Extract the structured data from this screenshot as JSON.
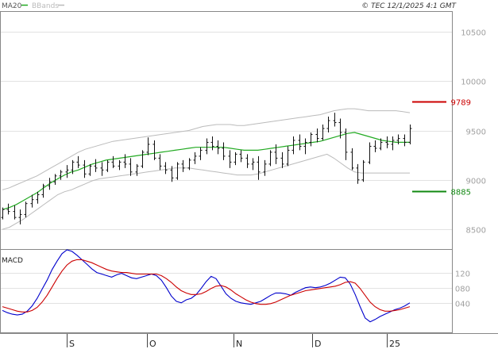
{
  "header": {
    "legend": [
      {
        "label": "MA20",
        "color": "#22aa22"
      },
      {
        "label": "BBands",
        "color": "#bbbbbb"
      }
    ],
    "copyright": "© TEC 12/1/2025 4:1 GMT"
  },
  "chart_data": [
    {
      "type": "line",
      "panel": "price",
      "y_ticks": [
        "10500",
        "10000",
        "9500",
        "9000",
        "8500"
      ],
      "ylim": [
        8300,
        10700
      ],
      "x_ticks": [
        "S",
        "O",
        "N",
        "D",
        "25"
      ],
      "grid": true,
      "series": [
        {
          "name": "MA20",
          "color": "#22aa22",
          "values": [
            8700,
            8720,
            8750,
            8790,
            8830,
            8870,
            8920,
            8970,
            9010,
            9050,
            9080,
            9100,
            9130,
            9160,
            9180,
            9200,
            9210,
            9220,
            9230,
            9240,
            9250,
            9260,
            9270,
            9280,
            9290,
            9300,
            9310,
            9320,
            9330,
            9330,
            9330,
            9330,
            9330,
            9320,
            9310,
            9300,
            9300,
            9300,
            9310,
            9320,
            9330,
            9340,
            9350,
            9360,
            9370,
            9380,
            9390,
            9410,
            9430,
            9450,
            9470,
            9480,
            9460,
            9440,
            9420,
            9400,
            9390,
            9380,
            9380,
            9380
          ]
        },
        {
          "name": "BBands",
          "color": "#bbbbbb",
          "values": [
            8500,
            8520,
            8560,
            8600,
            8650,
            8700,
            8750,
            8800,
            8850,
            8880,
            8900,
            8930,
            8960,
            8990,
            9010,
            9020,
            9030,
            9040,
            9050,
            9060,
            9070,
            9080,
            9090,
            9100,
            9110,
            9120,
            9120,
            9120,
            9110,
            9100,
            9090,
            9080,
            9070,
            9060,
            9050,
            9050,
            9050,
            9060,
            9080,
            9100,
            9120,
            9140,
            9160,
            9180,
            9200,
            9220,
            9240,
            9260,
            9220,
            9170,
            9120,
            9080,
            9070,
            9070,
            9070,
            9070,
            9070,
            9070,
            9070,
            9070
          ]
        },
        {
          "values": [
            8900,
            8920,
            8950,
            8980,
            9010,
            9040,
            9080,
            9120,
            9160,
            9200,
            9240,
            9280,
            9310,
            9330,
            9350,
            9370,
            9390,
            9400,
            9410,
            9420,
            9430,
            9440,
            9450,
            9460,
            9470,
            9480,
            9490,
            9500,
            9520,
            9540,
            9550,
            9560,
            9560,
            9560,
            9550,
            9550,
            9560,
            9570,
            9580,
            9590,
            9600,
            9610,
            9620,
            9630,
            9640,
            9650,
            9660,
            9680,
            9700,
            9710,
            9720,
            9720,
            9710,
            9700,
            9700,
            9700,
            9700,
            9700,
            9690,
            9680
          ]
        }
      ],
      "candles": [
        [
          8620,
          8720,
          8600,
          8700
        ],
        [
          8700,
          8760,
          8650,
          8680
        ],
        [
          8680,
          8740,
          8600,
          8620
        ],
        [
          8620,
          8700,
          8550,
          8650
        ],
        [
          8650,
          8780,
          8620,
          8760
        ],
        [
          8760,
          8850,
          8720,
          8800
        ],
        [
          8800,
          8880,
          8760,
          8850
        ],
        [
          8850,
          8960,
          8820,
          8940
        ],
        [
          8940,
          9020,
          8900,
          8980
        ],
        [
          8980,
          9060,
          8950,
          9040
        ],
        [
          9040,
          9100,
          9000,
          9080
        ],
        [
          9080,
          9150,
          9020,
          9100
        ],
        [
          9100,
          9200,
          9060,
          9180
        ],
        [
          9180,
          9240,
          9120,
          9150
        ],
        [
          9150,
          9200,
          9020,
          9060
        ],
        [
          9060,
          9160,
          9040,
          9140
        ],
        [
          9140,
          9210,
          9080,
          9120
        ],
        [
          9120,
          9180,
          9040,
          9100
        ],
        [
          9100,
          9200,
          9080,
          9180
        ],
        [
          9180,
          9240,
          9120,
          9140
        ],
        [
          9140,
          9200,
          9100,
          9180
        ],
        [
          9180,
          9260,
          9120,
          9160
        ],
        [
          9160,
          9220,
          9040,
          9080
        ],
        [
          9080,
          9160,
          9040,
          9140
        ],
        [
          9140,
          9300,
          9120,
          9280
        ],
        [
          9280,
          9430,
          9250,
          9360
        ],
        [
          9360,
          9400,
          9200,
          9220
        ],
        [
          9220,
          9260,
          9100,
          9140
        ],
        [
          9140,
          9180,
          9060,
          9100
        ],
        [
          9100,
          9140,
          8980,
          9020
        ],
        [
          9020,
          9180,
          9000,
          9160
        ],
        [
          9160,
          9200,
          9080,
          9120
        ],
        [
          9120,
          9220,
          9100,
          9200
        ],
        [
          9200,
          9280,
          9160,
          9240
        ],
        [
          9240,
          9330,
          9200,
          9300
        ],
        [
          9300,
          9420,
          9260,
          9380
        ],
        [
          9380,
          9440,
          9300,
          9340
        ],
        [
          9340,
          9400,
          9260,
          9320
        ],
        [
          9320,
          9380,
          9200,
          9240
        ],
        [
          9240,
          9300,
          9120,
          9180
        ],
        [
          9180,
          9280,
          9150,
          9260
        ],
        [
          9260,
          9300,
          9180,
          9220
        ],
        [
          9220,
          9260,
          9120,
          9160
        ],
        [
          9160,
          9220,
          9100,
          9180
        ],
        [
          9180,
          9240,
          9000,
          9080
        ],
        [
          9080,
          9200,
          9040,
          9160
        ],
        [
          9160,
          9300,
          9140,
          9280
        ],
        [
          9280,
          9360,
          9160,
          9220
        ],
        [
          9220,
          9280,
          9120,
          9160
        ],
        [
          9160,
          9340,
          9140,
          9300
        ],
        [
          9300,
          9440,
          9260,
          9400
        ],
        [
          9400,
          9460,
          9300,
          9340
        ],
        [
          9340,
          9420,
          9260,
          9380
        ],
        [
          9380,
          9480,
          9340,
          9460
        ],
        [
          9460,
          9520,
          9380,
          9420
        ],
        [
          9420,
          9560,
          9400,
          9520
        ],
        [
          9520,
          9640,
          9480,
          9600
        ],
        [
          9600,
          9680,
          9540,
          9580
        ],
        [
          9580,
          9620,
          9420,
          9480
        ],
        [
          9480,
          9520,
          9200,
          9280
        ],
        [
          9280,
          9320,
          9100,
          9120
        ],
        [
          9120,
          9160,
          8960,
          9000
        ],
        [
          9000,
          9200,
          8980,
          9180
        ],
        [
          9180,
          9380,
          9160,
          9340
        ],
        [
          9340,
          9400,
          9280,
          9320
        ],
        [
          9320,
          9420,
          9300,
          9380
        ],
        [
          9380,
          9440,
          9320,
          9360
        ],
        [
          9360,
          9440,
          9300,
          9400
        ],
        [
          9400,
          9460,
          9360,
          9420
        ],
        [
          9420,
          9460,
          9340,
          9380
        ],
        [
          9380,
          9560,
          9360,
          9520
        ]
      ],
      "reference_levels": [
        {
          "value": 9789,
          "label": "9789",
          "color": "#cc0000"
        },
        {
          "value": 8885,
          "label": "8885",
          "color": "#118811"
        }
      ]
    },
    {
      "type": "line",
      "panel": "macd",
      "label": "MACD",
      "y_ticks": [
        "120",
        "080",
        "040"
      ],
      "ylim": [
        -40,
        180
      ],
      "grid": true,
      "series": [
        {
          "color": "#0000cc",
          "values": [
            20,
            14,
            10,
            8,
            10,
            18,
            32,
            52,
            76,
            100,
            128,
            150,
            170,
            180,
            176,
            166,
            154,
            142,
            130,
            120,
            116,
            112,
            108,
            114,
            118,
            112,
            106,
            104,
            108,
            112,
            116,
            112,
            100,
            80,
            58,
            44,
            40,
            48,
            52,
            62,
            78,
            96,
            110,
            104,
            84,
            64,
            52,
            44,
            40,
            38,
            36,
            40,
            44,
            52,
            60,
            66,
            66,
            64,
            60,
            68,
            74,
            80,
            82,
            80,
            82,
            86,
            92,
            100,
            108,
            106,
            90,
            62,
            30,
            0,
            -10,
            -4,
            4,
            10,
            16,
            22,
            26,
            32,
            40
          ]
        },
        {
          "color": "#cc0000",
          "values": [
            30,
            26,
            22,
            18,
            16,
            16,
            20,
            28,
            42,
            60,
            82,
            104,
            124,
            140,
            150,
            154,
            154,
            150,
            146,
            140,
            134,
            128,
            124,
            122,
            120,
            120,
            118,
            116,
            116,
            116,
            116,
            116,
            112,
            104,
            94,
            82,
            72,
            66,
            62,
            62,
            64,
            70,
            78,
            84,
            86,
            82,
            74,
            64,
            56,
            48,
            42,
            38,
            36,
            36,
            38,
            42,
            48,
            54,
            60,
            64,
            68,
            72,
            74,
            76,
            78,
            80,
            82,
            84,
            88,
            94,
            96,
            92,
            78,
            60,
            42,
            30,
            22,
            18,
            18,
            20,
            22,
            26,
            30
          ]
        }
      ]
    }
  ]
}
